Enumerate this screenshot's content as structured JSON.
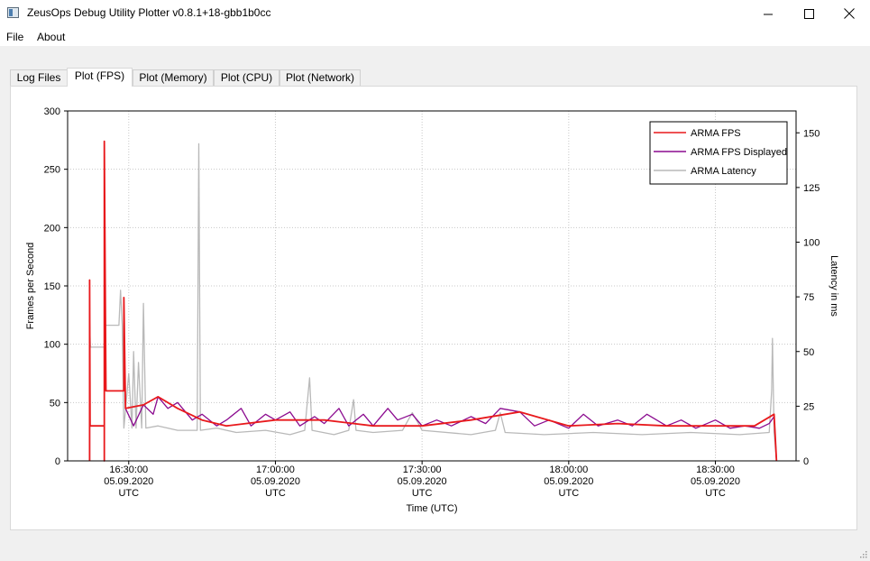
{
  "window": {
    "title": "ZeusOps Debug Utility Plotter v0.8.1+18-gbb1b0cc",
    "minimize_icon": "minimize-icon",
    "maximize_icon": "maximize-icon",
    "close_icon": "close-icon"
  },
  "menu": {
    "items": [
      "File",
      "About"
    ]
  },
  "tabs": [
    {
      "label": "Log Files",
      "active": false
    },
    {
      "label": "Plot (FPS)",
      "active": true
    },
    {
      "label": "Plot (Memory)",
      "active": false
    },
    {
      "label": "Plot (CPU)",
      "active": false
    },
    {
      "label": "Plot (Network)",
      "active": false
    }
  ],
  "chart_data": {
    "type": "line",
    "xlabel": "Time (UTC)",
    "ylabel_left": "Frames per Second",
    "ylabel_right": "Latency in ms",
    "ylim_left": [
      0,
      300
    ],
    "ylim_right": [
      0,
      160
    ],
    "yticks_left": [
      0,
      50,
      100,
      150,
      200,
      250,
      300
    ],
    "yticks_right": [
      0,
      25,
      50,
      75,
      100,
      125,
      150
    ],
    "xlim": [
      "2020-09-05T16:17:30Z",
      "2020-09-05T18:46:30Z"
    ],
    "xticks": [
      {
        "time": "2020-09-05T16:30:00Z",
        "lines": [
          "16:30:00",
          "05.09.2020",
          "UTC"
        ]
      },
      {
        "time": "2020-09-05T17:00:00Z",
        "lines": [
          "17:00:00",
          "05.09.2020",
          "UTC"
        ]
      },
      {
        "time": "2020-09-05T17:30:00Z",
        "lines": [
          "17:30:00",
          "05.09.2020",
          "UTC"
        ]
      },
      {
        "time": "2020-09-05T18:00:00Z",
        "lines": [
          "18:00:00",
          "05.09.2020",
          "UTC"
        ]
      },
      {
        "time": "2020-09-05T18:30:00Z",
        "lines": [
          "18:30:00",
          "05.09.2020",
          "UTC"
        ]
      }
    ],
    "grid": true,
    "legend_position": "top-right",
    "series": [
      {
        "name": "ARMA FPS",
        "axis": "left",
        "color": "#e8191c",
        "points": [
          [
            "2020-09-05T16:22:00Z",
            0
          ],
          [
            "2020-09-05T16:22:00Z",
            155
          ],
          [
            "2020-09-05T16:22:05Z",
            30
          ],
          [
            "2020-09-05T16:25:00Z",
            30
          ],
          [
            "2020-09-05T16:25:00Z",
            0
          ],
          [
            "2020-09-05T16:25:00Z",
            274
          ],
          [
            "2020-09-05T16:25:20Z",
            60
          ],
          [
            "2020-09-05T16:29:00Z",
            60
          ],
          [
            "2020-09-05T16:29:00Z",
            140
          ],
          [
            "2020-09-05T16:29:20Z",
            45
          ],
          [
            "2020-09-05T16:33:00Z",
            48
          ],
          [
            "2020-09-05T16:36:00Z",
            55
          ],
          [
            "2020-09-05T16:40:00Z",
            45
          ],
          [
            "2020-09-05T16:45:00Z",
            35
          ],
          [
            "2020-09-05T16:50:00Z",
            30
          ],
          [
            "2020-09-05T17:00:00Z",
            35
          ],
          [
            "2020-09-05T17:10:00Z",
            35
          ],
          [
            "2020-09-05T17:20:00Z",
            30
          ],
          [
            "2020-09-05T17:30:00Z",
            30
          ],
          [
            "2020-09-05T17:40:00Z",
            35
          ],
          [
            "2020-09-05T17:50:00Z",
            42
          ],
          [
            "2020-09-05T18:00:00Z",
            30
          ],
          [
            "2020-09-05T18:10:00Z",
            32
          ],
          [
            "2020-09-05T18:20:00Z",
            30
          ],
          [
            "2020-09-05T18:30:00Z",
            30
          ],
          [
            "2020-09-05T18:38:00Z",
            30
          ],
          [
            "2020-09-05T18:42:00Z",
            40
          ],
          [
            "2020-09-05T18:42:30Z",
            0
          ]
        ]
      },
      {
        "name": "ARMA FPS Displayed",
        "axis": "left",
        "color": "#8b0a8f",
        "points": [
          [
            "2020-09-05T16:22:00Z",
            0
          ],
          [
            "2020-09-05T16:22:00Z",
            118
          ],
          [
            "2020-09-05T16:22:05Z",
            30
          ],
          [
            "2020-09-05T16:25:00Z",
            30
          ],
          [
            "2020-09-05T16:25:00Z",
            0
          ],
          [
            "2020-09-05T16:25:00Z",
            112
          ],
          [
            "2020-09-05T16:25:20Z",
            60
          ],
          [
            "2020-09-05T16:29:00Z",
            60
          ],
          [
            "2020-09-05T16:29:00Z",
            110
          ],
          [
            "2020-09-05T16:29:20Z",
            45
          ],
          [
            "2020-09-05T16:31:00Z",
            30
          ],
          [
            "2020-09-05T16:33:00Z",
            48
          ],
          [
            "2020-09-05T16:35:00Z",
            40
          ],
          [
            "2020-09-05T16:36:00Z",
            55
          ],
          [
            "2020-09-05T16:38:00Z",
            45
          ],
          [
            "2020-09-05T16:40:00Z",
            50
          ],
          [
            "2020-09-05T16:43:00Z",
            35
          ],
          [
            "2020-09-05T16:45:00Z",
            40
          ],
          [
            "2020-09-05T16:48:00Z",
            30
          ],
          [
            "2020-09-05T16:50:00Z",
            35
          ],
          [
            "2020-09-05T16:53:00Z",
            45
          ],
          [
            "2020-09-05T16:55:00Z",
            30
          ],
          [
            "2020-09-05T16:58:00Z",
            40
          ],
          [
            "2020-09-05T17:00:00Z",
            35
          ],
          [
            "2020-09-05T17:03:00Z",
            42
          ],
          [
            "2020-09-05T17:05:00Z",
            30
          ],
          [
            "2020-09-05T17:08:00Z",
            38
          ],
          [
            "2020-09-05T17:10:00Z",
            32
          ],
          [
            "2020-09-05T17:13:00Z",
            45
          ],
          [
            "2020-09-05T17:15:00Z",
            30
          ],
          [
            "2020-09-05T17:18:00Z",
            40
          ],
          [
            "2020-09-05T17:20:00Z",
            30
          ],
          [
            "2020-09-05T17:23:00Z",
            45
          ],
          [
            "2020-09-05T17:25:00Z",
            35
          ],
          [
            "2020-09-05T17:28:00Z",
            40
          ],
          [
            "2020-09-05T17:30:00Z",
            30
          ],
          [
            "2020-09-05T17:33:00Z",
            35
          ],
          [
            "2020-09-05T17:36:00Z",
            30
          ],
          [
            "2020-09-05T17:40:00Z",
            38
          ],
          [
            "2020-09-05T17:43:00Z",
            32
          ],
          [
            "2020-09-05T17:46:00Z",
            45
          ],
          [
            "2020-09-05T17:50:00Z",
            42
          ],
          [
            "2020-09-05T17:53:00Z",
            30
          ],
          [
            "2020-09-05T17:56:00Z",
            35
          ],
          [
            "2020-09-05T18:00:00Z",
            28
          ],
          [
            "2020-09-05T18:03:00Z",
            40
          ],
          [
            "2020-09-05T18:06:00Z",
            30
          ],
          [
            "2020-09-05T18:10:00Z",
            35
          ],
          [
            "2020-09-05T18:13:00Z",
            30
          ],
          [
            "2020-09-05T18:16:00Z",
            40
          ],
          [
            "2020-09-05T18:20:00Z",
            30
          ],
          [
            "2020-09-05T18:23:00Z",
            35
          ],
          [
            "2020-09-05T18:26:00Z",
            28
          ],
          [
            "2020-09-05T18:30:00Z",
            35
          ],
          [
            "2020-09-05T18:33:00Z",
            28
          ],
          [
            "2020-09-05T18:36:00Z",
            30
          ],
          [
            "2020-09-05T18:39:00Z",
            28
          ],
          [
            "2020-09-05T18:41:00Z",
            32
          ],
          [
            "2020-09-05T18:42:00Z",
            38
          ],
          [
            "2020-09-05T18:42:30Z",
            0
          ]
        ]
      },
      {
        "name": "ARMA Latency",
        "axis": "right",
        "color": "#b9b9b9",
        "points": [
          [
            "2020-09-05T16:22:00Z",
            0
          ],
          [
            "2020-09-05T16:22:00Z",
            63
          ],
          [
            "2020-09-05T16:22:10Z",
            52
          ],
          [
            "2020-09-05T16:25:00Z",
            52
          ],
          [
            "2020-09-05T16:25:00Z",
            0
          ],
          [
            "2020-09-05T16:25:05Z",
            62
          ],
          [
            "2020-09-05T16:25:20Z",
            62
          ],
          [
            "2020-09-05T16:28:00Z",
            62
          ],
          [
            "2020-09-05T16:28:20Z",
            78
          ],
          [
            "2020-09-05T16:28:40Z",
            62
          ],
          [
            "2020-09-05T16:29:00Z",
            15
          ],
          [
            "2020-09-05T16:30:00Z",
            40
          ],
          [
            "2020-09-05T16:30:40Z",
            15
          ],
          [
            "2020-09-05T16:31:00Z",
            50
          ],
          [
            "2020-09-05T16:31:30Z",
            15
          ],
          [
            "2020-09-05T16:32:00Z",
            45
          ],
          [
            "2020-09-05T16:32:40Z",
            15
          ],
          [
            "2020-09-05T16:33:00Z",
            72
          ],
          [
            "2020-09-05T16:33:30Z",
            15
          ],
          [
            "2020-09-05T16:36:00Z",
            16
          ],
          [
            "2020-09-05T16:40:00Z",
            14
          ],
          [
            "2020-09-05T16:44:00Z",
            14
          ],
          [
            "2020-09-05T16:44:20Z",
            145
          ],
          [
            "2020-09-05T16:44:40Z",
            14
          ],
          [
            "2020-09-05T16:48:00Z",
            15
          ],
          [
            "2020-09-05T16:52:00Z",
            13
          ],
          [
            "2020-09-05T16:58:00Z",
            14
          ],
          [
            "2020-09-05T17:03:00Z",
            12
          ],
          [
            "2020-09-05T17:06:00Z",
            14
          ],
          [
            "2020-09-05T17:07:00Z",
            38
          ],
          [
            "2020-09-05T17:07:30Z",
            14
          ],
          [
            "2020-09-05T17:12:00Z",
            12
          ],
          [
            "2020-09-05T17:15:00Z",
            14
          ],
          [
            "2020-09-05T17:16:00Z",
            28
          ],
          [
            "2020-09-05T17:16:30Z",
            14
          ],
          [
            "2020-09-05T17:20:00Z",
            13
          ],
          [
            "2020-09-05T17:26:00Z",
            14
          ],
          [
            "2020-09-05T17:28:00Z",
            22
          ],
          [
            "2020-09-05T17:30:00Z",
            14
          ],
          [
            "2020-09-05T17:40:00Z",
            12
          ],
          [
            "2020-09-05T17:45:00Z",
            14
          ],
          [
            "2020-09-05T17:46:00Z",
            22
          ],
          [
            "2020-09-05T17:47:00Z",
            13
          ],
          [
            "2020-09-05T17:55:00Z",
            12
          ],
          [
            "2020-09-05T18:05:00Z",
            13
          ],
          [
            "2020-09-05T18:15:00Z",
            12
          ],
          [
            "2020-09-05T18:25:00Z",
            13
          ],
          [
            "2020-09-05T18:35:00Z",
            12
          ],
          [
            "2020-09-05T18:41:00Z",
            13
          ],
          [
            "2020-09-05T18:41:30Z",
            32
          ],
          [
            "2020-09-05T18:41:40Z",
            56
          ],
          [
            "2020-09-05T18:42:00Z",
            13
          ],
          [
            "2020-09-05T18:42:30Z",
            0
          ]
        ]
      }
    ]
  }
}
